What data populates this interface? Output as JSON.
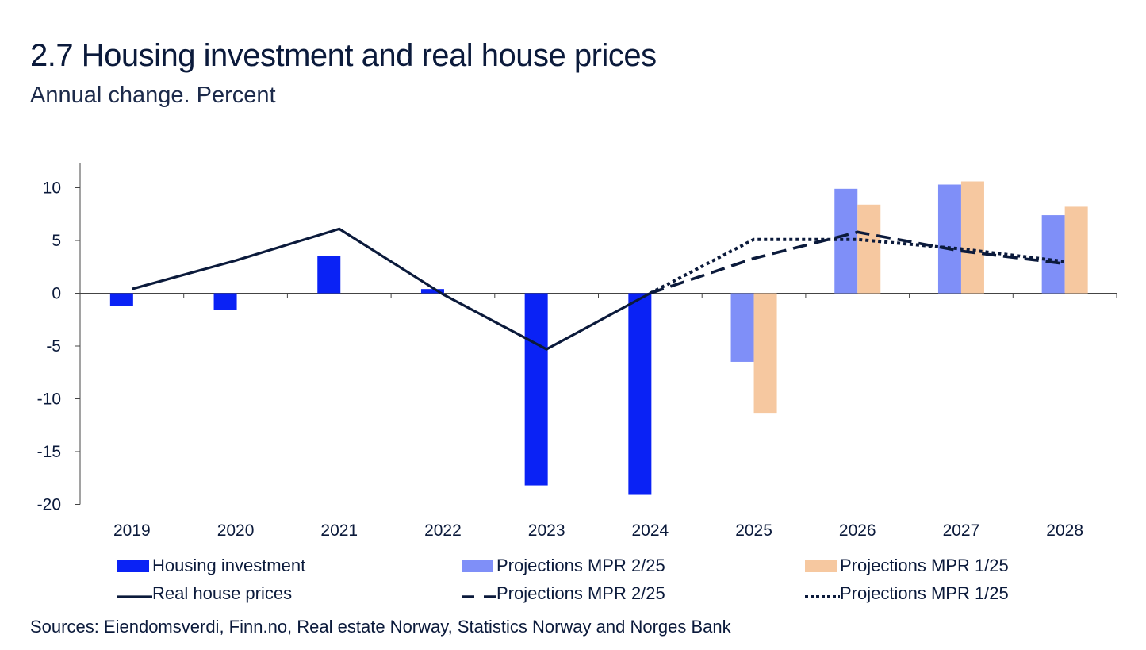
{
  "title": "2.7 Housing investment and real house prices",
  "subtitle": "Annual change. Percent",
  "sources": "Sources: Eiendomsverdi, Finn.no, Real estate Norway, Statistics Norway and  Norges Bank",
  "colors": {
    "housing_investment": "#0a22f5",
    "projections_mpr_2_25_bar": "#7f8ff8",
    "projections_mpr_1_25_bar": "#f6c8a0",
    "line": "#0b1a3b"
  },
  "chart_data": {
    "type": "bar",
    "title": "2.7 Housing investment and real house prices",
    "subtitle": "Annual change. Percent",
    "categories": [
      "2019",
      "2020",
      "2021",
      "2022",
      "2023",
      "2024",
      "2025",
      "2026",
      "2027",
      "2028"
    ],
    "y_ticks": [
      "10",
      "5",
      "0",
      "-5",
      "-10",
      "-15",
      "-20"
    ],
    "ylim": [
      -20,
      12
    ],
    "series": [
      {
        "name": "Housing investment",
        "kind": "bar",
        "values": [
          -1.2,
          -1.6,
          3.5,
          0.4,
          -18.2,
          -19.1,
          null,
          null,
          null,
          null
        ]
      },
      {
        "name": "Projections MPR 2/25",
        "kind": "bar",
        "values": [
          null,
          null,
          null,
          null,
          null,
          null,
          -6.5,
          9.9,
          10.3,
          7.4
        ]
      },
      {
        "name": "Projections MPR 1/25",
        "kind": "bar",
        "values": [
          null,
          null,
          null,
          null,
          null,
          null,
          -11.4,
          8.4,
          10.6,
          8.2
        ]
      },
      {
        "name": "Real house prices",
        "kind": "line",
        "points": [
          [
            2019,
            0.4
          ],
          [
            2020,
            3.1
          ],
          [
            2021,
            6.1
          ],
          [
            2022,
            -0.1
          ],
          [
            2023,
            -5.3
          ],
          [
            2024,
            0.0
          ]
        ]
      },
      {
        "name": "Projections MPR 2/25",
        "kind": "line-dashed",
        "points": [
          [
            2024,
            0.0
          ],
          [
            2025,
            3.3
          ],
          [
            2026,
            5.8
          ],
          [
            2027,
            4.0
          ],
          [
            2028,
            2.8
          ]
        ]
      },
      {
        "name": "Projections MPR 1/25",
        "kind": "line-dotted",
        "points": [
          [
            2024,
            0.0
          ],
          [
            2025,
            5.1
          ],
          [
            2026,
            5.1
          ],
          [
            2027,
            4.2
          ],
          [
            2028,
            3.0
          ]
        ]
      }
    ],
    "legend": [
      {
        "label": "Housing investment",
        "swatch": "bar-housing"
      },
      {
        "label": "Projections MPR 2/25",
        "swatch": "bar-mpr2"
      },
      {
        "label": "Projections MPR 1/25",
        "swatch": "bar-mpr1"
      },
      {
        "label": "Real house prices",
        "swatch": "line-solid"
      },
      {
        "label": "Projections MPR 2/25",
        "swatch": "line-dashed"
      },
      {
        "label": "Projections MPR 1/25",
        "swatch": "line-dotted"
      }
    ]
  }
}
